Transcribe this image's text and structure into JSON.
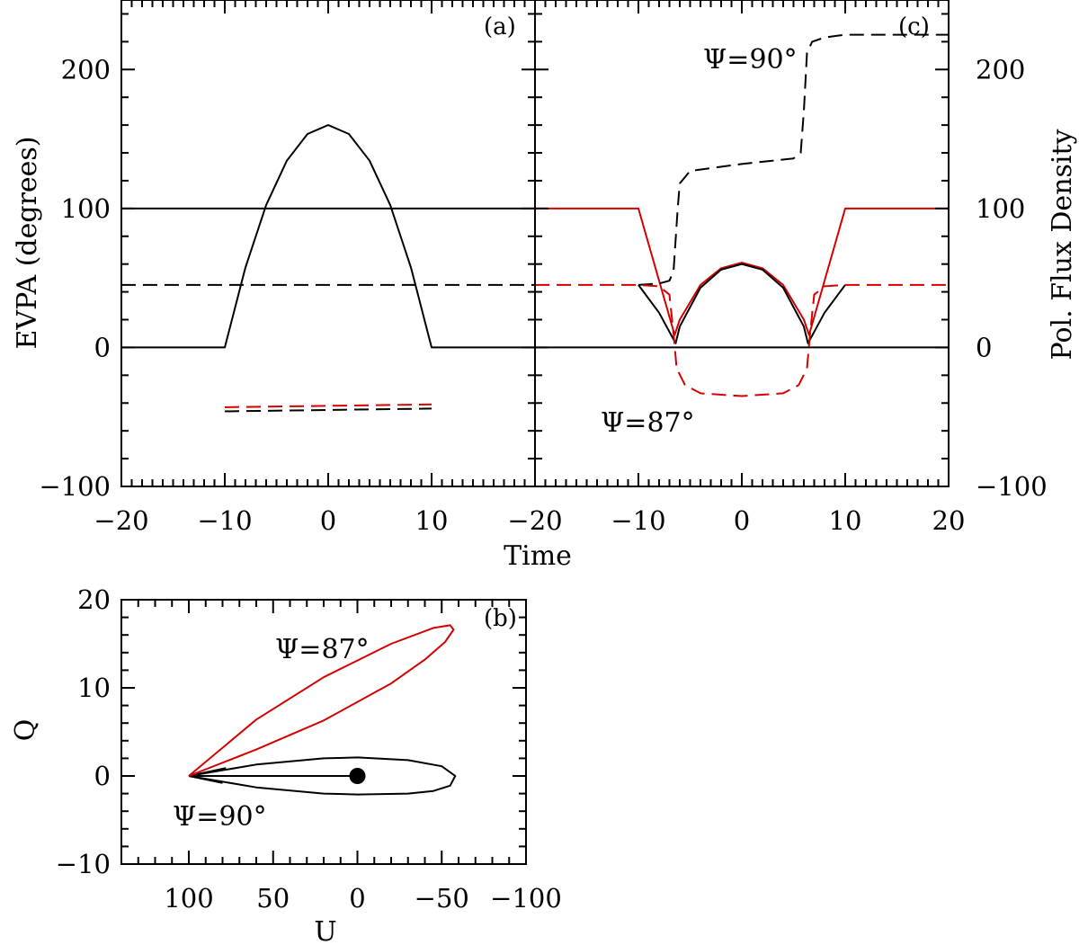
{
  "chart_data": [
    {
      "id": "a",
      "type": "line",
      "panel_label": "(a)",
      "xlabel": "",
      "ylabel": "EVPA (degrees)",
      "xlim": [
        -20,
        20
      ],
      "ylim": [
        -100,
        250
      ],
      "x_ticks": [
        -20,
        -10,
        0,
        10
      ],
      "y_ticks": [
        -100,
        0,
        100,
        200
      ],
      "x_tick_labels": [
        "−20",
        "−10",
        "0",
        "10"
      ],
      "y_tick_labels": [
        "−100",
        "0",
        "100",
        "200"
      ],
      "grid": false,
      "series": [
        {
          "color": "#000000",
          "dash": "solid",
          "x": [
            -20,
            -10,
            -8,
            -6,
            -4,
            -2,
            0,
            2,
            4,
            6,
            8,
            10,
            20
          ],
          "y": [
            0,
            0,
            57.6,
            102.4,
            134.4,
            153.6,
            160,
            153.6,
            134.4,
            102.4,
            57.6,
            0,
            0
          ]
        },
        {
          "color": "#000000",
          "dash": "solid",
          "x": [
            -20,
            20
          ],
          "y": [
            100,
            100
          ]
        },
        {
          "color": "#000000",
          "dash": "dashed",
          "x": [
            -20,
            20
          ],
          "y": [
            45,
            45
          ]
        },
        {
          "color": "#000000",
          "dash": "dashed",
          "x": [
            -10,
            10
          ],
          "y": [
            -46,
            -44
          ]
        },
        {
          "color": "#d40000",
          "dash": "dashed",
          "x": [
            -10,
            10
          ],
          "y": [
            -43,
            -41
          ]
        }
      ]
    },
    {
      "id": "c",
      "type": "line",
      "panel_label": "(c)",
      "xlabel": "Time",
      "ylabel": "Pol. Flux Density",
      "xlim": [
        -20,
        20
      ],
      "ylim": [
        -100,
        250
      ],
      "x_ticks": [
        -20,
        -10,
        0,
        10,
        20
      ],
      "y_ticks": [
        -100,
        0,
        100,
        200
      ],
      "x_tick_labels": [
        "−20",
        "−10",
        "0",
        "10",
        "20"
      ],
      "y_tick_labels": [
        "−100",
        "0",
        "100",
        "200"
      ],
      "annotations": [
        {
          "text": "Ψ=90°",
          "x": -2,
          "y": 220
        },
        {
          "text": "Ψ=87°",
          "x": -11.5,
          "y": -70
        }
      ],
      "grid": false,
      "series": [
        {
          "color": "#000000",
          "dash": "solid",
          "x": [
            -20,
            20
          ],
          "y": [
            0,
            0
          ]
        },
        {
          "color": "#d40000",
          "dash": "solid",
          "x": [
            -20,
            -10,
            -6.5,
            -6,
            -4,
            -2,
            0,
            2,
            4,
            6,
            6.5,
            10,
            20
          ],
          "y": [
            100,
            100,
            9,
            20,
            45,
            57,
            61,
            57,
            45,
            20,
            9,
            100,
            100
          ]
        },
        {
          "color": "#000000",
          "dash": "solid",
          "x": [
            -10,
            -8,
            -6.4,
            -6,
            -4,
            -2,
            0,
            2,
            4,
            6,
            6.4,
            8,
            10
          ],
          "y": [
            45,
            25,
            3,
            15,
            43,
            56,
            60,
            56,
            43,
            15,
            3,
            25,
            45
          ]
        },
        {
          "color": "#000000",
          "dash": "dashed",
          "x": [
            -10,
            -8,
            -7,
            -6.6,
            -6.2,
            -6,
            -5,
            0,
            5,
            5.7,
            6,
            6.3,
            6.8,
            8,
            10,
            20
          ],
          "y": [
            45,
            46,
            48,
            55,
            100,
            118,
            127,
            132,
            136,
            140,
            170,
            212,
            220,
            223,
            225,
            225
          ]
        },
        {
          "color": "#d40000",
          "dash": "dashed",
          "x": [
            -20,
            -10,
            -8,
            -7,
            -6.6,
            -6.3,
            -5.5,
            -4,
            0,
            4,
            5.5,
            6.3,
            6.6,
            7,
            8,
            10,
            20
          ],
          "y": [
            45,
            45,
            44,
            38,
            10,
            -15,
            -27,
            -33,
            -35,
            -33,
            -27,
            -15,
            10,
            38,
            44,
            45,
            45
          ]
        }
      ]
    },
    {
      "id": "b",
      "type": "line",
      "panel_label": "(b)",
      "xlabel": "U",
      "ylabel": "Q",
      "xlim": [
        140,
        -100
      ],
      "ylim": [
        -10,
        20
      ],
      "x_ticks": [
        100,
        50,
        0,
        -50,
        -100
      ],
      "y_ticks": [
        -10,
        0,
        10,
        20
      ],
      "x_tick_labels": [
        "100",
        "50",
        "0",
        "−50",
        "−100"
      ],
      "y_tick_labels": [
        "−10",
        "0",
        "10",
        "20"
      ],
      "annotations": [
        {
          "text": "Ψ=87°",
          "x": 72,
          "y": 13
        },
        {
          "text": "Ψ=90°",
          "x": 82,
          "y": -4.5
        }
      ],
      "grid": false,
      "marker": {
        "x": 0,
        "y": 0
      },
      "series": [
        {
          "color": "#000000",
          "dash": "solid",
          "x": [
            100,
            60,
            20,
            0,
            -30,
            -50,
            -58,
            -55,
            -45,
            -30,
            0,
            20,
            60,
            100
          ],
          "y": [
            0,
            1.3,
            2.0,
            2.1,
            1.8,
            1.1,
            0,
            -1.1,
            -1.7,
            -2.0,
            -2.1,
            -2.0,
            -1.3,
            0
          ]
        },
        {
          "color": "#000000",
          "dash": "solid",
          "x": [
            100,
            0
          ],
          "y": [
            0,
            0
          ]
        },
        {
          "color": "#000000",
          "dash": "solid",
          "x": [
            100,
            78
          ],
          "y": [
            0,
            0.9
          ]
        },
        {
          "color": "#000000",
          "dash": "solid",
          "x": [
            100,
            80
          ],
          "y": [
            0,
            -0.8
          ]
        },
        {
          "color": "#d40000",
          "dash": "solid",
          "x": [
            100,
            60,
            20,
            -20,
            -45,
            -55,
            -57,
            -52,
            -40,
            -20,
            20,
            60,
            100
          ],
          "y": [
            0,
            6.4,
            11.2,
            15.0,
            16.8,
            17.1,
            16.6,
            15.2,
            13.2,
            10.5,
            6.3,
            3.0,
            0
          ]
        }
      ]
    }
  ]
}
